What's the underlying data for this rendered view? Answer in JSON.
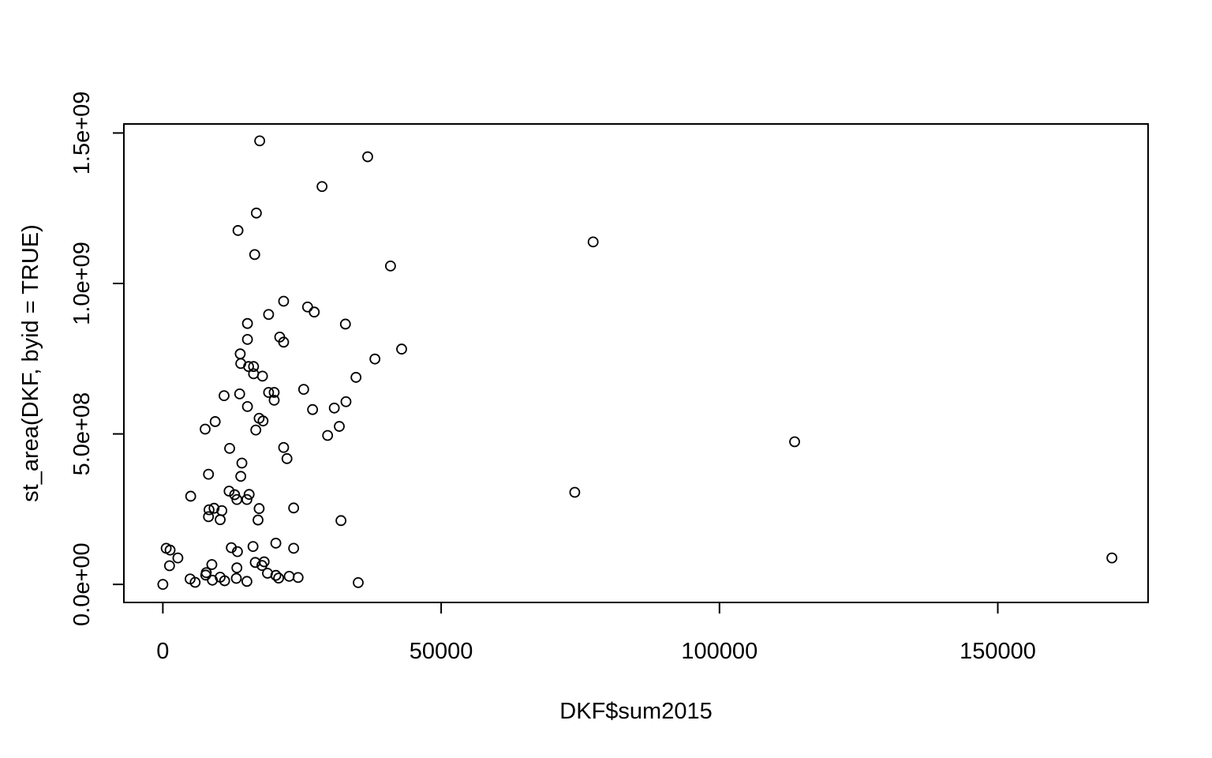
{
  "chart_data": {
    "type": "scatter",
    "title": "",
    "xlabel": "DKF$sum2015",
    "ylabel": "st_area(DKF, byid = TRUE)",
    "xlim": [
      -7000,
      177000
    ],
    "ylim": [
      -60000000,
      1530000000
    ],
    "grid": false,
    "marker": "open-circle",
    "x_ticks": [
      {
        "value": 0,
        "label": "0"
      },
      {
        "value": 50000,
        "label": "50000"
      },
      {
        "value": 100000,
        "label": "100000"
      },
      {
        "value": 150000,
        "label": "150000"
      }
    ],
    "y_ticks": [
      {
        "value": 0,
        "label": "0.0e+00"
      },
      {
        "value": 500000000,
        "label": "5.0e+08"
      },
      {
        "value": 1000000000,
        "label": "1.0e+09"
      },
      {
        "value": 1500000000,
        "label": "1.5e+09"
      }
    ],
    "points": [
      [
        17400,
        1474000000
      ],
      [
        36800,
        1421000000
      ],
      [
        28600,
        1322000000
      ],
      [
        16800,
        1234000000
      ],
      [
        13500,
        1176000000
      ],
      [
        77300,
        1138000000
      ],
      [
        16500,
        1096000000
      ],
      [
        40900,
        1058000000
      ],
      [
        21700,
        941000000
      ],
      [
        26000,
        922000000
      ],
      [
        27200,
        905000000
      ],
      [
        19000,
        897000000
      ],
      [
        15200,
        867000000
      ],
      [
        32800,
        865000000
      ],
      [
        21000,
        822000000
      ],
      [
        21700,
        805000000
      ],
      [
        15200,
        814000000
      ],
      [
        42900,
        782000000
      ],
      [
        13900,
        766000000
      ],
      [
        38100,
        749000000
      ],
      [
        14000,
        734000000
      ],
      [
        15400,
        724000000
      ],
      [
        16300,
        724000000
      ],
      [
        16300,
        700000000
      ],
      [
        17900,
        692000000
      ],
      [
        34700,
        688000000
      ],
      [
        25300,
        648000000
      ],
      [
        19000,
        638000000
      ],
      [
        20000,
        638000000
      ],
      [
        11000,
        627000000
      ],
      [
        13800,
        633000000
      ],
      [
        20000,
        612000000
      ],
      [
        32900,
        607000000
      ],
      [
        15200,
        591000000
      ],
      [
        30800,
        586000000
      ],
      [
        26900,
        581000000
      ],
      [
        17300,
        552000000
      ],
      [
        18000,
        543000000
      ],
      [
        9400,
        541000000
      ],
      [
        31700,
        525000000
      ],
      [
        7600,
        516000000
      ],
      [
        16700,
        513000000
      ],
      [
        29600,
        495000000
      ],
      [
        113500,
        474000000
      ],
      [
        12000,
        452000000
      ],
      [
        21700,
        455000000
      ],
      [
        22300,
        418000000
      ],
      [
        14200,
        403000000
      ],
      [
        8200,
        366000000
      ],
      [
        14000,
        359000000
      ],
      [
        11900,
        310000000
      ],
      [
        74000,
        306000000
      ],
      [
        5000,
        293000000
      ],
      [
        12900,
        298000000
      ],
      [
        15500,
        299000000
      ],
      [
        13300,
        282000000
      ],
      [
        15100,
        282000000
      ],
      [
        23500,
        254000000
      ],
      [
        17300,
        252000000
      ],
      [
        9200,
        253000000
      ],
      [
        8300,
        248000000
      ],
      [
        10600,
        245000000
      ],
      [
        8200,
        225000000
      ],
      [
        10300,
        215000000
      ],
      [
        17100,
        214000000
      ],
      [
        32000,
        212000000
      ],
      [
        20300,
        137000000
      ],
      [
        16200,
        126000000
      ],
      [
        12300,
        122000000
      ],
      [
        23500,
        120000000
      ],
      [
        600,
        120000000
      ],
      [
        1300,
        114000000
      ],
      [
        13400,
        109000000
      ],
      [
        2700,
        88000000
      ],
      [
        170500,
        88000000
      ],
      [
        16600,
        73000000
      ],
      [
        18200,
        75000000
      ],
      [
        8800,
        66000000
      ],
      [
        1200,
        62000000
      ],
      [
        17800,
        63000000
      ],
      [
        13300,
        55000000
      ],
      [
        7800,
        39000000
      ],
      [
        18800,
        37000000
      ],
      [
        7700,
        31000000
      ],
      [
        20300,
        30000000
      ],
      [
        22700,
        27000000
      ],
      [
        24300,
        23000000
      ],
      [
        10300,
        24000000
      ],
      [
        13200,
        20000000
      ],
      [
        4900,
        18000000
      ],
      [
        20800,
        21000000
      ],
      [
        8900,
        14000000
      ],
      [
        11100,
        12000000
      ],
      [
        15100,
        10000000
      ],
      [
        5800,
        7000000
      ],
      [
        35100,
        6000000
      ],
      [
        0,
        0
      ]
    ]
  }
}
